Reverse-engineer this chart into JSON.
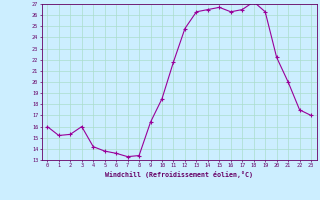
{
  "x": [
    0,
    1,
    2,
    3,
    4,
    5,
    6,
    7,
    8,
    9,
    10,
    11,
    12,
    13,
    14,
    15,
    16,
    17,
    18,
    19,
    20,
    21,
    22,
    23
  ],
  "y": [
    16.0,
    15.2,
    15.3,
    16.0,
    14.2,
    13.8,
    13.6,
    13.3,
    13.4,
    16.4,
    18.5,
    21.8,
    24.8,
    26.3,
    26.5,
    26.7,
    26.3,
    26.5,
    27.2,
    26.3,
    22.2,
    20.0,
    17.5,
    17.0
  ],
  "line_color": "#990099",
  "marker": "+",
  "marker_size": 3,
  "bg_color": "#cceeff",
  "grid_color": "#aaddcc",
  "xlabel": "Windchill (Refroidissement éolien,°C)",
  "xlim": [
    -0.5,
    23.5
  ],
  "ylim": [
    13,
    27
  ],
  "yticks": [
    13,
    14,
    15,
    16,
    17,
    18,
    19,
    20,
    21,
    22,
    23,
    24,
    25,
    26,
    27
  ],
  "xticks": [
    0,
    1,
    2,
    3,
    4,
    5,
    6,
    7,
    8,
    9,
    10,
    11,
    12,
    13,
    14,
    15,
    16,
    17,
    18,
    19,
    20,
    21,
    22,
    23
  ],
  "axis_color": "#660066",
  "tick_color": "#660066",
  "xlabel_color": "#660066"
}
